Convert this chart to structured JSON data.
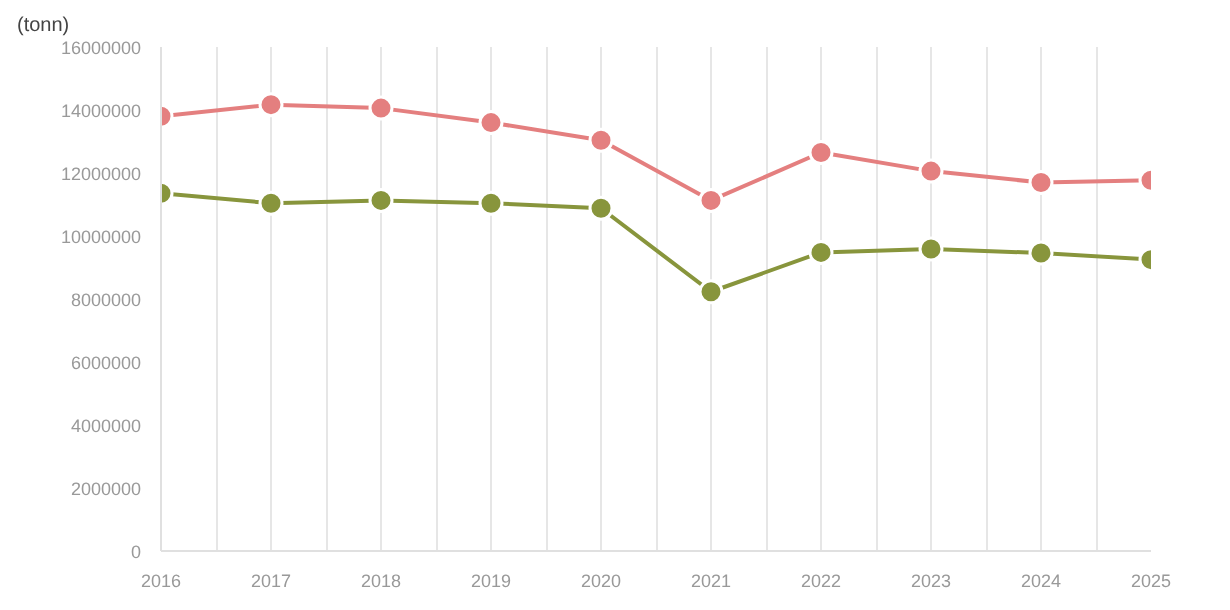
{
  "chart_data": {
    "type": "line",
    "ylabel": "(tonn)",
    "x": [
      2016,
      2017,
      2018,
      2019,
      2020,
      2021,
      2022,
      2023,
      2024,
      2025
    ],
    "series": [
      {
        "color": "#e47f7f",
        "values": [
          13800000,
          14170000,
          14060000,
          13600000,
          13040000,
          11130000,
          12650000,
          12060000,
          11700000,
          11770000
        ]
      },
      {
        "color": "#88953c",
        "values": [
          11360000,
          11040000,
          11130000,
          11040000,
          10880000,
          8230000,
          9480000,
          9590000,
          9460000,
          9250000
        ]
      }
    ],
    "xlim": [
      2016,
      2025
    ],
    "xticks": [
      2016,
      {
        "value": 2016.5,
        "label": null
      },
      2017,
      {
        "value": 2017.5,
        "label": null
      },
      2018,
      {
        "value": 2018.5,
        "label": null
      },
      2019,
      {
        "value": 2019.5,
        "label": null
      },
      2020,
      {
        "value": 2020.5,
        "label": null
      },
      2021,
      {
        "value": 2021.5,
        "label": null
      },
      2022,
      {
        "value": 2022.5,
        "label": null
      },
      2023,
      {
        "value": 2023.5,
        "label": null
      },
      2024,
      {
        "value": 2024.5,
        "label": null
      },
      2025
    ],
    "ylim": [
      0,
      16000000
    ],
    "yticks": [
      0,
      2000000,
      4000000,
      6000000,
      8000000,
      10000000,
      12000000,
      14000000,
      16000000
    ],
    "grid": "x",
    "marker": "circle",
    "line_style": "solid"
  }
}
